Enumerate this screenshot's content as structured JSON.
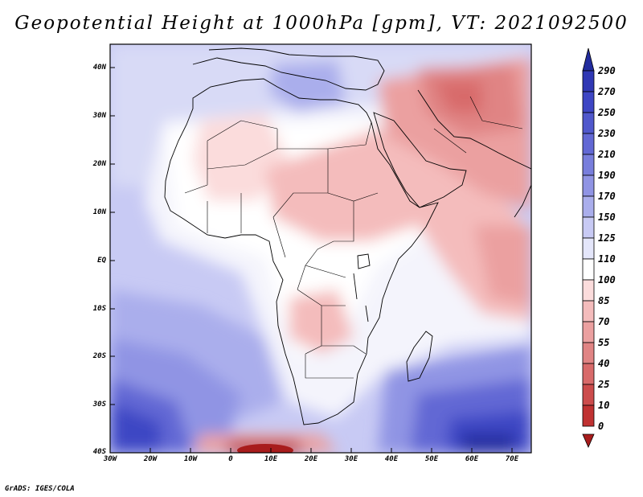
{
  "title": "Geopotential Height at 1000hPa [gpm], VT: 2021092500",
  "credit": "GrADS: IGES/COLA",
  "map": {
    "variable": "Geopotential Height",
    "level": "1000hPa",
    "units": "gpm",
    "valid_time": "2021092500",
    "lat_labels": [
      "40N",
      "30N",
      "20N",
      "10N",
      "EQ",
      "10S",
      "20S",
      "30S",
      "40S"
    ],
    "lon_labels": [
      "30W",
      "20W",
      "10W",
      "0",
      "10E",
      "20E",
      "30E",
      "40E",
      "50E",
      "60E",
      "70E"
    ],
    "extent": {
      "lon": [
        -30,
        75
      ],
      "lat": [
        -40,
        45
      ]
    }
  },
  "colorbar": {
    "labels": [
      "290",
      "270",
      "250",
      "230",
      "210",
      "190",
      "170",
      "150",
      "125",
      "110",
      "100",
      "85",
      "70",
      "55",
      "40",
      "25",
      "10",
      "0"
    ],
    "colors": [
      "#222c9e",
      "#3038b4",
      "#3e46c4",
      "#5058cc",
      "#6268d4",
      "#787edc",
      "#9094e4",
      "#aaaeec",
      "#c8caf4",
      "#e4e6fa",
      "#ffffff",
      "#fbdcdc",
      "#f4bcbc",
      "#eba0a0",
      "#e08484",
      "#d86a6a",
      "#cc4c4c",
      "#c03232",
      "#a81c1c"
    ]
  },
  "colors": {
    "frame": "#000000",
    "land_outline": "#000000"
  }
}
